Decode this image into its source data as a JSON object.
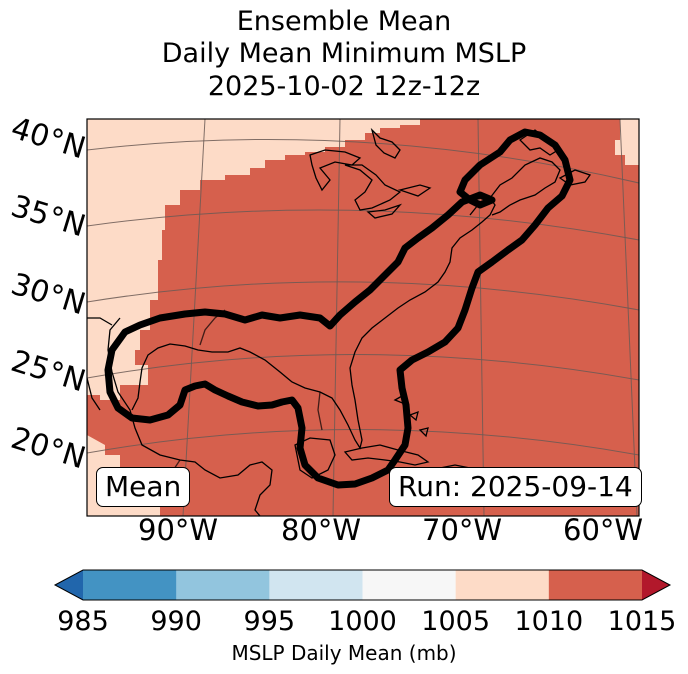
{
  "title": {
    "line1": "Ensemble Mean",
    "line2": "Daily Mean Minimum MSLP",
    "line3": "2025-10-02 12z-12z"
  },
  "map": {
    "lat_labels": [
      "40°N",
      "35°N",
      "30°N",
      "25°N",
      "20°N"
    ],
    "lon_labels": [
      "90°W",
      "80°W",
      "70°W",
      "60°W"
    ],
    "left_label": "Mean",
    "right_label": "Run: 2025-09-14",
    "fill_colors": {
      "background": "#fddbc7",
      "main": "#d6604d"
    },
    "contour_color": "#000000"
  },
  "colorbar": {
    "ticks": [
      "985",
      "990",
      "995",
      "1000",
      "1005",
      "1010",
      "1015"
    ],
    "colors": [
      "#4393c3",
      "#92c5de",
      "#d1e5f0",
      "#f7f7f7",
      "#fddbc7",
      "#d6604d"
    ],
    "under_color": "#2166ac",
    "over_color": "#b2182b",
    "label": "MSLP Daily Mean (mb)"
  }
}
